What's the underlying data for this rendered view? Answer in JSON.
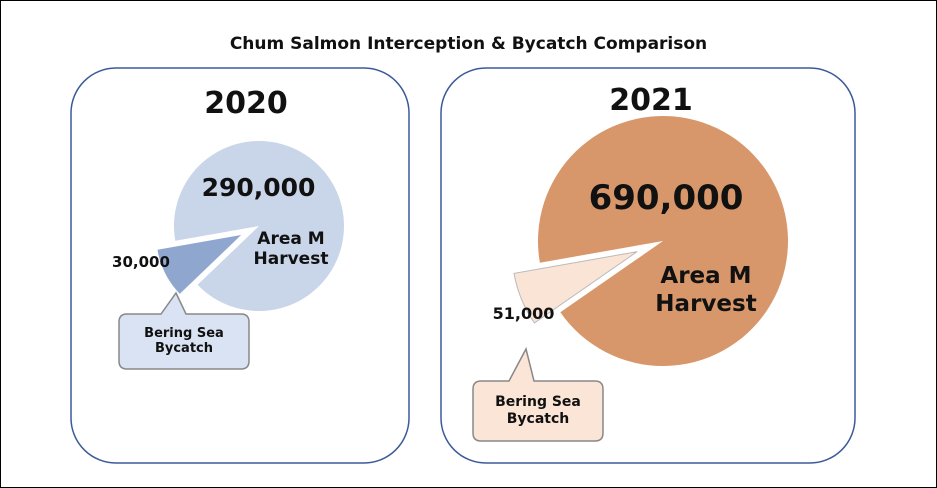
{
  "title": "Chum Salmon Interception & Bycatch Comparison",
  "chart_data": [
    {
      "type": "pie",
      "title": "2020",
      "categories": [
        "Area M Harvest",
        "Bering Sea Bycatch"
      ],
      "values": [
        290000,
        30000
      ],
      "value_labels": [
        "290,000",
        "30,000"
      ],
      "colors": [
        "#c9d5e8",
        "#8fa6cf"
      ]
    },
    {
      "type": "pie",
      "title": "2021",
      "categories": [
        "Area M Harvest",
        "Bering Sea Bycatch"
      ],
      "values": [
        690000,
        51000
      ],
      "value_labels": [
        "690,000",
        "51,000"
      ],
      "colors": [
        "#d8976a",
        "#f9e4d5"
      ]
    }
  ]
}
